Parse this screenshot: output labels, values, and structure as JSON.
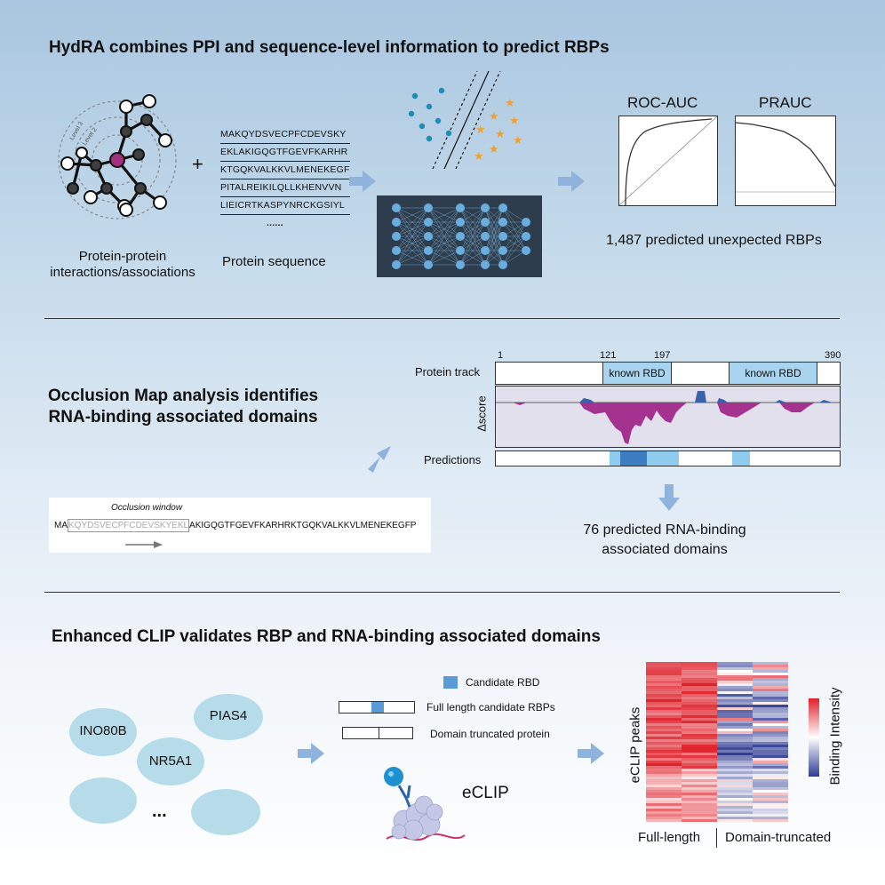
{
  "section1": {
    "title": "HydRA combines PPI and sequence-level information to predict RBPs",
    "ppi_label_line1": "Protein-protein",
    "ppi_label_line2": "interactions/associations",
    "level_labels": [
      "Level 3",
      "Level 2",
      "Level 1"
    ],
    "plus": "+",
    "sequence_lines": [
      "MAKQYDSVECPFCDEVSKY",
      "EKLAKIGQGTFGEVFKARHR",
      "KTGQKVALKKVLMENEKEGF",
      "PITALREIKILQLLKHENVVN",
      "LIEICRTKASPYNRCKGSIYL"
    ],
    "sequence_ellipsis": "......",
    "sequence_label": "Protein sequence",
    "roc_label": "ROC-AUC",
    "prauc_label": "PRAUC",
    "result": "1,487 predicted unexpected RBPs"
  },
  "section2": {
    "title_line1": "Occlusion Map analysis identifies",
    "title_line2": "RNA-binding associated domains",
    "occlusion_window_label": "Occlusion window",
    "occlusion_prefix": "MA",
    "occlusion_window_seq": "KQYDSVECPFCDEVSKYEKL",
    "occlusion_suffix": "AKIGQGTFGEVFKARHRKTGQKVALKKVLMENEKEGFP",
    "track_label": "Protein track",
    "positions": [
      "1",
      "121",
      "197",
      "390"
    ],
    "known_rbd_1": "known RBD",
    "known_rbd_2": "known RBD",
    "score_label": "Δscore",
    "predictions_label": "Predictions",
    "result_line1": "76 predicted RNA-binding",
    "result_line2": "associated domains"
  },
  "section3": {
    "title": "Enhanced CLIP validates RBP and RNA-binding associated domains",
    "proteins": [
      "INO80B",
      "PIAS4",
      "NR5A1",
      "",
      ""
    ],
    "dots": "...",
    "legend_candidate": "Candidate RBD",
    "legend_full": "Full length candidate RBPs",
    "legend_truncated": "Domain truncated protein",
    "eclip_label": "eCLIP",
    "heatmap_ylabel": "eCLIP peaks",
    "heatmap_colorbar_label": "Binding Intensity",
    "heatmap_x_left": "Full-length",
    "heatmap_x_right": "Domain-truncated"
  },
  "colors": {
    "accent_blue": "#5b9bd5",
    "magenta": "#a3338f",
    "arrow_blue": "#8fb3dd",
    "node_magenta": "#a3307e",
    "node_dark": "#3f3f3f",
    "heat_red": "#e0202a",
    "heat_blue": "#303c94"
  }
}
